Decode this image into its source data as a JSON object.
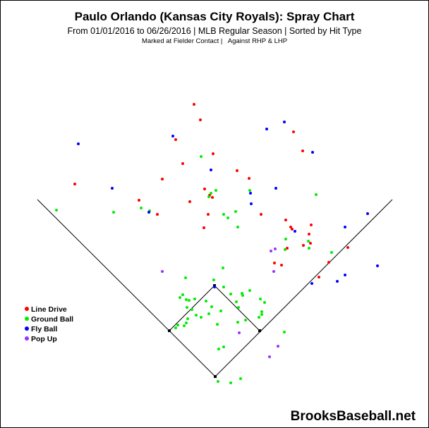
{
  "chart_data": {
    "type": "scatter",
    "title": "Paulo Orlando (Kansas City Royals): Spray Chart",
    "subtitle": "From 01/01/2016 to 06/26/2016 | MLB Regular Season | Sorted by Hit Type",
    "note_left": "Marked at Fielder Contact |",
    "note_right": "Against RHP & LHP",
    "xlabel": "",
    "ylabel": "",
    "axes_visible": false,
    "grid": false,
    "legend_position": "lower-left",
    "watermark": "BrooksBaseball.net",
    "series": [
      {
        "name": "Line Drive",
        "color": "#ff0000",
        "points": [
          [
            275,
            148
          ],
          [
            284,
            170
          ],
          [
            249,
            198
          ],
          [
            302,
            218
          ],
          [
            259,
            232
          ],
          [
            336,
            242
          ],
          [
            230,
            254
          ],
          [
            106,
            261
          ],
          [
            290,
            268
          ],
          [
            197,
            284
          ],
          [
            269,
            286
          ],
          [
            297,
            277
          ],
          [
            301,
            280
          ],
          [
            223,
            304
          ],
          [
            295,
            304
          ],
          [
            289,
            323
          ],
          [
            370,
            304
          ],
          [
            405,
            312
          ],
          [
            412,
            322
          ],
          [
            414,
            325
          ],
          [
            441,
            319
          ],
          [
            438,
            332
          ],
          [
            440,
            345
          ],
          [
            430,
            348
          ],
          [
            407,
            352
          ],
          [
            389,
            373
          ],
          [
            399,
            376
          ],
          [
            466,
            372
          ],
          [
            452,
            393
          ],
          [
            493,
            351
          ],
          [
            416,
            187
          ],
          [
            429,
            214
          ],
          [
            353,
            253
          ]
        ]
      },
      {
        "name": "Ground Ball",
        "color": "#00ee00",
        "points": [
          [
            80,
            298
          ],
          [
            161,
            301
          ],
          [
            200,
            295
          ],
          [
            212,
            299
          ],
          [
            285,
            222
          ],
          [
            299,
            274
          ],
          [
            306,
            270
          ],
          [
            317,
            304
          ],
          [
            323,
            309
          ],
          [
            337,
            322
          ],
          [
            334,
            300
          ],
          [
            354,
            270
          ],
          [
            448,
            276
          ],
          [
            296,
            279
          ],
          [
            404,
            354
          ],
          [
            405,
            339
          ],
          [
            438,
            352
          ],
          [
            437,
            342
          ],
          [
            470,
            358
          ],
          [
            316,
            380
          ],
          [
            303,
            397
          ],
          [
            317,
            407
          ],
          [
            263,
            394
          ],
          [
            259,
            418
          ],
          [
            255,
            422
          ],
          [
            264,
            425
          ],
          [
            268,
            426
          ],
          [
            276,
            424
          ],
          [
            265,
            436
          ],
          [
            272,
            439
          ],
          [
            278,
            447
          ],
          [
            266,
            452
          ],
          [
            264,
            458
          ],
          [
            261,
            462
          ],
          [
            252,
            461
          ],
          [
            249,
            465
          ],
          [
            292,
            427
          ],
          [
            300,
            435
          ],
          [
            296,
            445
          ],
          [
            285,
            450
          ],
          [
            308,
            460
          ],
          [
            313,
            441
          ],
          [
            327,
            417
          ],
          [
            335,
            428
          ],
          [
            338,
            436
          ],
          [
            354,
            412
          ],
          [
            343,
            416
          ],
          [
            344,
            419
          ],
          [
            369,
            424
          ],
          [
            375,
            429
          ],
          [
            371,
            442
          ],
          [
            371,
            446
          ],
          [
            367,
            450
          ],
          [
            348,
            454
          ],
          [
            337,
            457
          ],
          [
            317,
            492
          ],
          [
            310,
            495
          ],
          [
            341,
            537
          ],
          [
            327,
            543
          ],
          [
            309,
            541
          ],
          [
            403,
            471
          ]
        ]
      },
      {
        "name": "Fly Ball",
        "color": "#0000ff",
        "points": [
          [
            111,
            204
          ],
          [
            159,
            267
          ],
          [
            245,
            193
          ],
          [
            299,
            241
          ],
          [
            378,
            183
          ],
          [
            403,
            173
          ],
          [
            443,
            216
          ],
          [
            355,
            274
          ],
          [
            391,
            267
          ],
          [
            356,
            289
          ],
          [
            418,
            328
          ],
          [
            442,
            402
          ],
          [
            478,
            399
          ],
          [
            489,
            390
          ],
          [
            489,
            322
          ],
          [
            521,
            303
          ],
          [
            535,
            377
          ],
          [
            211,
            301
          ],
          [
            304,
            407
          ]
        ]
      },
      {
        "name": "Pop Up",
        "color": "#9933ff",
        "points": [
          [
            230,
            385
          ],
          [
            384,
            356
          ],
          [
            390,
            353
          ],
          [
            388,
            385
          ],
          [
            339,
            472
          ],
          [
            394,
            491
          ],
          [
            382,
            506
          ]
        ]
      }
    ],
    "field_points": {
      "home_plate": [
        305,
        534
      ],
      "first_base": [
        368,
        469
      ],
      "second_base": [
        304,
        405
      ],
      "third_base": [
        240,
        469
      ],
      "left_foul_pole": [
        53,
        283
      ],
      "right_foul_pole": [
        556,
        283
      ]
    }
  }
}
